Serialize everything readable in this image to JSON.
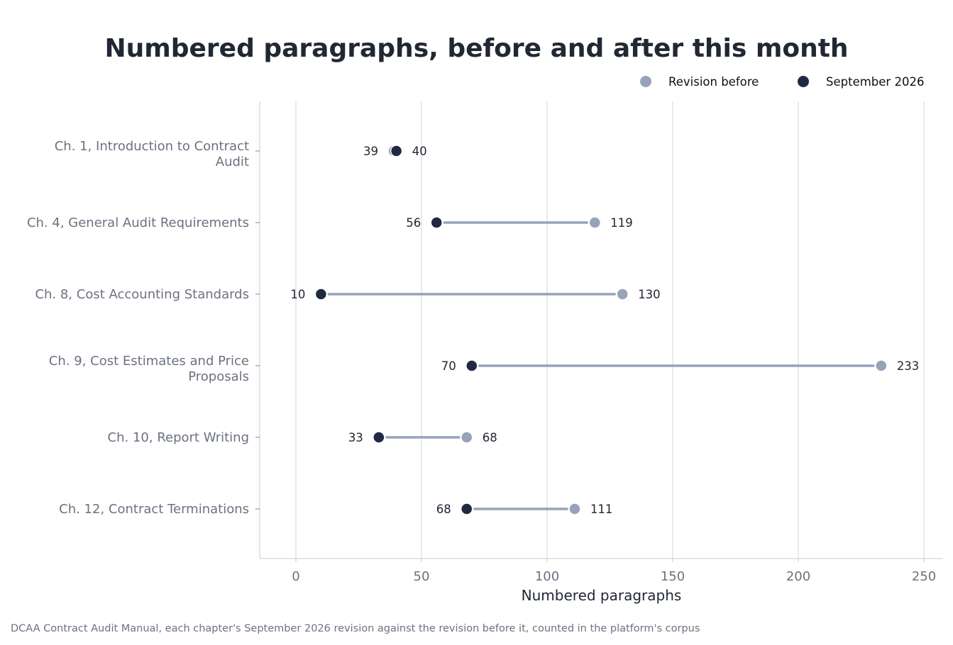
{
  "chart_data": {
    "type": "dumbbell",
    "title": "Numbered paragraphs, before and after this month",
    "xlabel": "Numbered paragraphs",
    "source_note": "DCAA Contract Audit Manual, each chapter's September 2026 revision against the revision before it, counted in the platform's corpus",
    "xlim": [
      -14,
      258
    ],
    "xticks": [
      0,
      50,
      100,
      150,
      200,
      250
    ],
    "grid": true,
    "legend_position": "top-right",
    "categories": [
      [
        "Ch. 1, Introduction to Contract",
        "Audit"
      ],
      [
        "Ch. 4, General Audit Requirements"
      ],
      [
        "Ch. 8, Cost Accounting Standards"
      ],
      [
        "Ch. 9, Cost Estimates and Price",
        "Proposals"
      ],
      [
        "Ch. 10, Report Writing"
      ],
      [
        "Ch. 12, Contract Terminations"
      ]
    ],
    "series": [
      {
        "name": "Revision before",
        "color": "#97a3ba",
        "values": [
          39,
          119,
          130,
          233,
          68,
          111
        ]
      },
      {
        "name": "September 2026",
        "color": "#1f2942",
        "values": [
          40,
          56,
          10,
          70,
          33,
          68
        ]
      }
    ],
    "connector_color": "#97a3ba"
  }
}
